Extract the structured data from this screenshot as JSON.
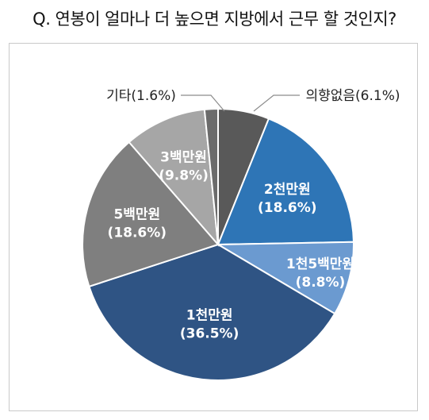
{
  "title": "Q. 연봉이 얼마나 더 높으면 지방에서 근무 할 것인지?",
  "chart_data": {
    "type": "pie",
    "title": "Q. 연봉이 얼마나 더 높으면 지방에서 근무 할 것인지?",
    "slices": [
      {
        "label": "의향없음",
        "value": 6.1,
        "value_label": "(6.1%)",
        "color": "#595959",
        "label_pos": "outside"
      },
      {
        "label": "2천만원",
        "value": 18.6,
        "value_label": "(18.6%)",
        "color": "#2e75b6",
        "label_pos": "inside"
      },
      {
        "label": "1천5백만원",
        "value": 8.8,
        "value_label": "(8.8%)",
        "color": "#6b9ad0",
        "label_pos": "inside"
      },
      {
        "label": "1천만원",
        "value": 36.5,
        "value_label": "(36.5%)",
        "color": "#2f5484",
        "label_pos": "inside"
      },
      {
        "label": "5백만원",
        "value": 18.6,
        "value_label": "(18.6%)",
        "color": "#7f7f7f",
        "label_pos": "inside"
      },
      {
        "label": "3백만원",
        "value": 9.8,
        "value_label": "(9.8%)",
        "color": "#a6a6a6",
        "label_pos": "inside"
      },
      {
        "label": "기타",
        "value": 1.6,
        "value_label": "(1.6%)",
        "color": "#6b6b6b",
        "label_pos": "outside"
      }
    ]
  }
}
